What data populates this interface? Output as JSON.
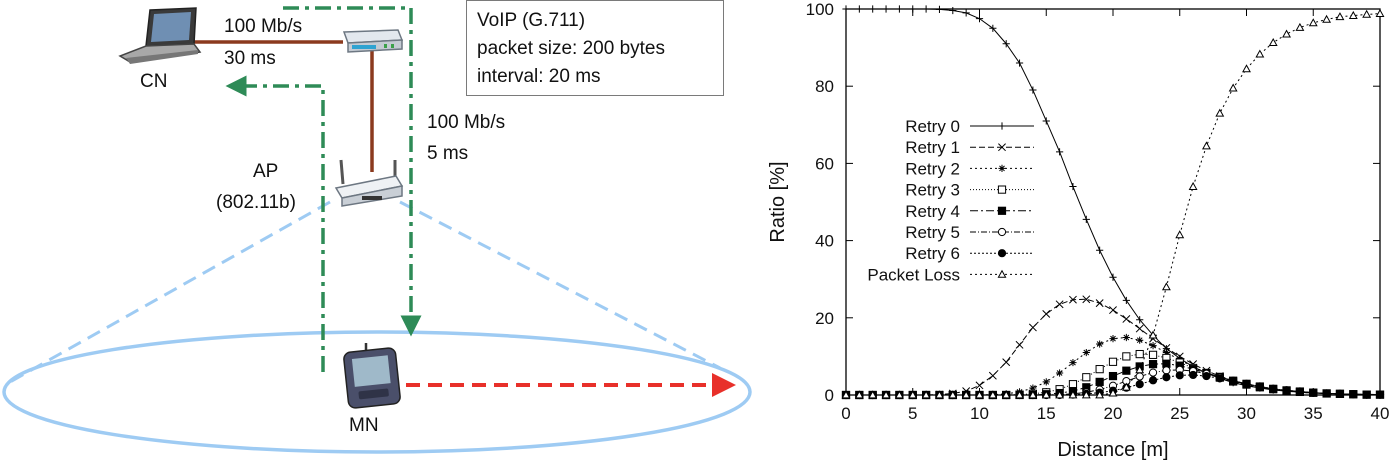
{
  "diagram": {
    "nodes": {
      "cn": "CN",
      "ap_name": "AP",
      "ap_standard": "(802.11b)",
      "mn": "MN"
    },
    "link_cn_router": {
      "bandwidth": "100 Mb/s",
      "delay": "30 ms"
    },
    "link_router_ap": {
      "bandwidth": "100 Mb/s",
      "delay": "5 ms"
    },
    "info_box": {
      "line1": "VoIP (G.711)",
      "line2": "packet size: 200 bytes",
      "line3": "interval: 20 ms"
    },
    "colors": {
      "wired_link": "#8b3a1e",
      "flow": "#2e8b57",
      "coverage": "#9ecbf3",
      "movement": "#e8302a"
    }
  },
  "chart_data": {
    "type": "line",
    "title": "",
    "xlabel": "Distance [m]",
    "ylabel": "Ratio [%]",
    "xlim": [
      0,
      40
    ],
    "ylim": [
      0,
      100
    ],
    "xticks": [
      0,
      5,
      10,
      15,
      20,
      25,
      30,
      35,
      40
    ],
    "yticks": [
      0,
      20,
      40,
      60,
      80,
      100
    ],
    "legend_position": "middle-left",
    "x": [
      0,
      1,
      2,
      3,
      4,
      5,
      6,
      7,
      8,
      9,
      10,
      11,
      12,
      13,
      14,
      15,
      16,
      17,
      18,
      19,
      20,
      21,
      22,
      23,
      24,
      25,
      26,
      27,
      28,
      29,
      30,
      31,
      32,
      33,
      34,
      35,
      36,
      37,
      38,
      39,
      40
    ],
    "series": [
      {
        "name": "Retry 0",
        "marker": "plus",
        "dash": "",
        "values": [
          100,
          100,
          100,
          100,
          100,
          100,
          100,
          99.9,
          99.6,
          99,
          97.5,
          95,
          91,
          86,
          79,
          71,
          63,
          54,
          45.5,
          37.5,
          30.5,
          24.5,
          19.5,
          15.5,
          12,
          9.5,
          7.3,
          5.7,
          4.3,
          3.2,
          2.4,
          1.8,
          1.3,
          1,
          0.7,
          0.5,
          0.4,
          0.3,
          0.2,
          0.2,
          0.1
        ]
      },
      {
        "name": "Retry 1",
        "marker": "cross",
        "dash": "6,3",
        "values": [
          0,
          0,
          0,
          0,
          0,
          0,
          0,
          0.1,
          0.4,
          1,
          2.5,
          5,
          8.5,
          13,
          17.5,
          21,
          23.5,
          24.7,
          24.8,
          23.8,
          22,
          19.7,
          17.2,
          14.6,
          12.2,
          10,
          8,
          6.3,
          4.9,
          3.7,
          2.8,
          2.1,
          1.5,
          1.1,
          0.8,
          0.6,
          0.4,
          0.3,
          0.2,
          0.1,
          0.1
        ]
      },
      {
        "name": "Retry 2",
        "marker": "star",
        "dash": "2,3",
        "values": [
          0,
          0,
          0,
          0,
          0,
          0,
          0,
          0,
          0,
          0,
          0,
          0.1,
          0.3,
          0.8,
          1.8,
          3.4,
          5.7,
          8.4,
          11,
          13.2,
          14.6,
          14.9,
          14.2,
          12.8,
          11,
          9.1,
          7.3,
          5.8,
          4.5,
          3.4,
          2.6,
          1.9,
          1.4,
          1,
          0.7,
          0.5,
          0.4,
          0.3,
          0.2,
          0.1,
          0.1
        ]
      },
      {
        "name": "Retry 3",
        "marker": "square-open",
        "dash": "1,2",
        "values": [
          0,
          0,
          0,
          0,
          0,
          0,
          0,
          0,
          0,
          0,
          0,
          0,
          0,
          0.1,
          0.3,
          0.7,
          1.5,
          2.8,
          4.6,
          6.7,
          8.6,
          10,
          10.6,
          10.4,
          9.6,
          8.4,
          7,
          5.7,
          4.5,
          3.5,
          2.7,
          2,
          1.5,
          1.1,
          0.8,
          0.6,
          0.4,
          0.3,
          0.2,
          0.1,
          0.1
        ]
      },
      {
        "name": "Retry 4",
        "marker": "square-filled",
        "dash": "8,3,2,3",
        "values": [
          0,
          0,
          0,
          0,
          0,
          0,
          0,
          0,
          0,
          0,
          0,
          0,
          0,
          0,
          0,
          0.2,
          0.5,
          1,
          2,
          3.4,
          4.9,
          6.3,
          7.4,
          8,
          8.1,
          7.6,
          6.7,
          5.7,
          4.7,
          3.7,
          2.9,
          2.2,
          1.6,
          1.2,
          0.9,
          0.6,
          0.4,
          0.3,
          0.2,
          0.1,
          0.1
        ]
      },
      {
        "name": "Retry 5",
        "marker": "circle-open",
        "dash": "6,2,1,2",
        "values": [
          0,
          0,
          0,
          0,
          0,
          0,
          0,
          0,
          0,
          0,
          0,
          0,
          0,
          0,
          0,
          0,
          0.1,
          0.3,
          0.7,
          1.4,
          2.4,
          3.6,
          4.8,
          5.8,
          6.4,
          6.5,
          6.2,
          5.5,
          4.6,
          3.7,
          2.9,
          2.2,
          1.6,
          1.2,
          0.9,
          0.6,
          0.4,
          0.3,
          0.2,
          0.1,
          0.1
        ]
      },
      {
        "name": "Retry 6",
        "marker": "circle-filled",
        "dash": "2,2",
        "values": [
          0,
          0,
          0,
          0,
          0,
          0,
          0,
          0,
          0,
          0,
          0,
          0,
          0,
          0,
          0,
          0,
          0,
          0.1,
          0.3,
          0.6,
          1.1,
          1.9,
          2.8,
          3.8,
          4.6,
          5.1,
          5.2,
          4.9,
          4.3,
          3.6,
          2.8,
          2.2,
          1.6,
          1.2,
          0.9,
          0.6,
          0.4,
          0.3,
          0.2,
          0.1,
          0.1
        ]
      },
      {
        "name": "Packet Loss",
        "marker": "triangle-open",
        "dash": "2,3",
        "values": [
          0,
          0,
          0,
          0,
          0,
          0,
          0,
          0,
          0,
          0,
          0,
          0,
          0,
          0,
          0,
          0,
          0,
          0,
          0,
          0,
          0.5,
          2,
          6.5,
          15.5,
          28,
          41.5,
          54,
          64.5,
          73,
          79.5,
          84.5,
          88.3,
          91.3,
          93.5,
          95.2,
          96.4,
          97.3,
          98,
          98.3,
          98.6,
          98.8
        ]
      }
    ]
  }
}
